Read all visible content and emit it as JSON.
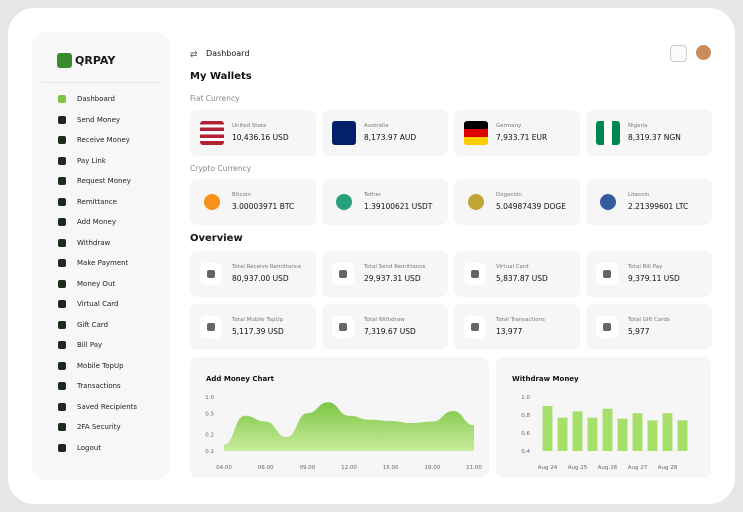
{
  "brand": "QRPAY",
  "sidebar": [
    "Dashboard",
    "Send Money",
    "Receive Money",
    "Pay Link",
    "Request Money",
    "Remittance",
    "Add Money",
    "Withdraw",
    "Make Payment",
    "Money Out",
    "Virtual Card",
    "Gift Card",
    "Bill Pay",
    "Mobile TopUp",
    "Transactions",
    "Saved Recipients",
    "2FA Security",
    "Logout"
  ],
  "header": {
    "breadcrumb": "Dashboard",
    "title": "My Wallets"
  },
  "fiat": {
    "label": "Fiat Currency",
    "wallets": [
      {
        "name": "United State",
        "amount": "10,436.16",
        "currency": "USD"
      },
      {
        "name": "Australia",
        "amount": "8,173.97",
        "currency": "AUD"
      },
      {
        "name": "Germany",
        "amount": "7,933.71",
        "currency": "EUR"
      },
      {
        "name": "Nigeria",
        "amount": "8,319.37",
        "currency": "NGN"
      }
    ]
  },
  "crypto": {
    "label": "Crypto Currency",
    "wallets": [
      {
        "name": "Bitcoin",
        "amount": "3.00003971",
        "currency": "BTC"
      },
      {
        "name": "Tether",
        "amount": "1.39100621",
        "currency": "USDT"
      },
      {
        "name": "Dogecoin",
        "amount": "5.04987439",
        "currency": "DOGE"
      },
      {
        "name": "Litecoin",
        "amount": "2.21399601",
        "currency": "LTC"
      }
    ]
  },
  "overview": {
    "title": "Overview",
    "items": [
      {
        "label": "Total Receive Remittance",
        "amount": "80,937.00",
        "currency": "USD"
      },
      {
        "label": "Total Send Remittance",
        "amount": "29,937.31",
        "currency": "USD"
      },
      {
        "label": "Virtual Card",
        "amount": "5,837.87",
        "currency": "USD"
      },
      {
        "label": "Total Bill Pay",
        "amount": "9,379.11",
        "currency": "USD"
      },
      {
        "label": "Total Mobile TopUp",
        "amount": "5,117.39",
        "currency": "USD"
      },
      {
        "label": "Total Withdraw",
        "amount": "7,319.67",
        "currency": "USD"
      },
      {
        "label": "Total Transactions",
        "amount": "13,977"
      },
      {
        "label": "Total Gift Cards",
        "amount": "5,977"
      }
    ]
  },
  "chart_data": [
    {
      "type": "area",
      "title": "Add Money Chart",
      "color": "#7cc644",
      "log_scale": true,
      "categories": [
        "04.00",
        null,
        "06.00",
        null,
        "09.00",
        null,
        "12.00",
        null,
        "15.00",
        null,
        "19.00",
        null,
        "21.00"
      ],
      "values": [
        0.13,
        0.45,
        0.35,
        0.18,
        0.5,
        0.8,
        0.45,
        0.38,
        0.36,
        0.33,
        0.35,
        0.55,
        0.3
      ],
      "ylim": [
        0.1,
        1
      ],
      "yticks": [
        {
          "value": 1,
          "label": "1.0"
        },
        0.5,
        0.2,
        0.1
      ]
    },
    {
      "type": "bar",
      "title": "Withdraw Money",
      "color": "#a6e06a",
      "categories": [
        "Aug 24",
        null,
        "Aug 25",
        null,
        "Aug 26",
        null,
        "Aug 27",
        null,
        "Aug 28",
        null
      ],
      "values": [
        0.9,
        0.77,
        0.84,
        0.77,
        0.87,
        0.76,
        0.82,
        0.74,
        0.82,
        0.74
      ],
      "ylim": [
        0.4,
        1
      ],
      "yticks": [
        {
          "value": 1,
          "label": "1.0"
        },
        0.8,
        0.6,
        0.4
      ]
    }
  ]
}
